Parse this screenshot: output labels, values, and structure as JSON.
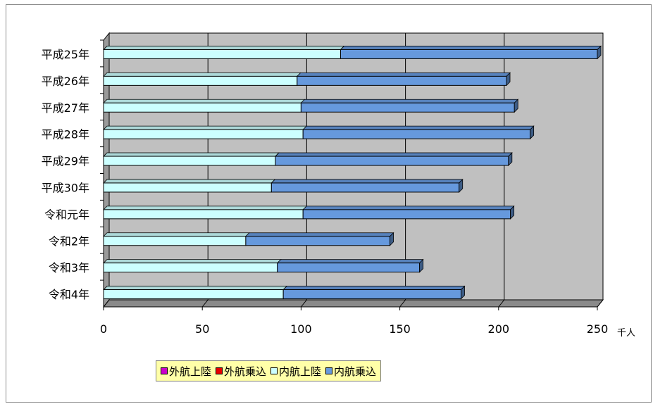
{
  "chart_data": {
    "type": "bar",
    "orientation": "horizontal",
    "stacked": true,
    "three_d": true,
    "categories": [
      "平成25年",
      "平成26年",
      "平成27年",
      "平成28年",
      "平成29年",
      "平成30年",
      "令和元年",
      "令和2年",
      "令和3年",
      "令和4年"
    ],
    "series": [
      {
        "name": "外航上陸",
        "color": "#cc00cc",
        "values": [
          0,
          0,
          0,
          0,
          0,
          0,
          0,
          0,
          0,
          0
        ]
      },
      {
        "name": "外航乗込",
        "color": "#e60000",
        "values": [
          0,
          0,
          0,
          0,
          0,
          0,
          0,
          0,
          0,
          0
        ]
      },
      {
        "name": "内航上陸",
        "color": "#ccffff",
        "values": [
          120,
          98,
          100,
          101,
          87,
          85,
          101,
          72,
          88,
          91
        ]
      },
      {
        "name": "内航乗込",
        "color": "#6699dd",
        "values": [
          130,
          106,
          108,
          115,
          118,
          95,
          105,
          73,
          72,
          90
        ]
      }
    ],
    "xlim": [
      0,
      250
    ],
    "xticks": [
      "0",
      "50",
      "100",
      "150",
      "200",
      "250"
    ],
    "unit_label": "千人",
    "grid": true,
    "legend": "bottom",
    "plot_colors": {
      "wall": "#c0c0c0",
      "gridline": "#000000"
    }
  }
}
